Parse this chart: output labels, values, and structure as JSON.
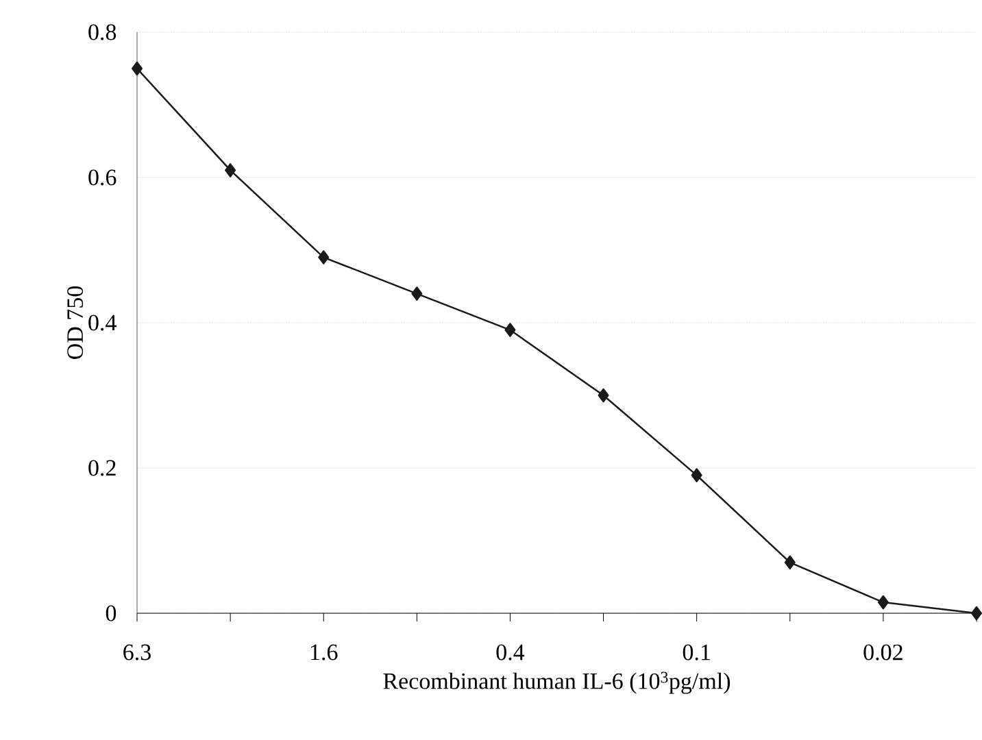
{
  "chart_data": {
    "type": "line",
    "xlabel": "Recombinant human IL-6 (10$^{3}$pg/ml)",
    "ylabel": "OD 750",
    "categories": [
      "6.3",
      null,
      "1.6",
      null,
      "0.4",
      null,
      "0.1",
      null,
      "0.02",
      null
    ],
    "values": [
      0.75,
      0.61,
      0.49,
      0.44,
      0.39,
      0.3,
      0.19,
      0.07,
      0.015,
      0
    ],
    "color": "#1a1a1a",
    "marker": "diamond",
    "line_style": "solid",
    "ylim": [
      0,
      0.8
    ],
    "yticks": [
      0,
      0.2,
      0.4,
      0.6,
      0.8
    ],
    "grid": "y"
  }
}
